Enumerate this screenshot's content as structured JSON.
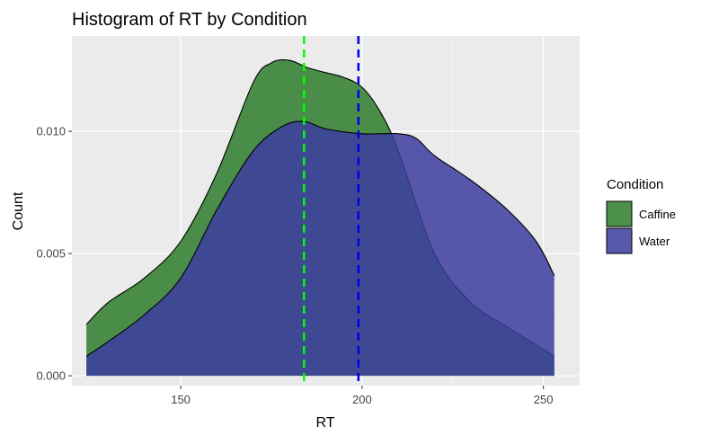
{
  "chart_data": {
    "type": "area",
    "title": "Histogram of RT by Condition",
    "xlabel": "RT",
    "ylabel": "Count",
    "xlim": [
      120,
      260
    ],
    "ylim": [
      -0.0004,
      0.0139
    ],
    "x_ticks": [
      150,
      200,
      250
    ],
    "y_ticks": [
      0.0,
      0.005,
      0.01
    ],
    "x_tick_labels": [
      "150",
      "200",
      "250"
    ],
    "y_tick_labels": [
      "0.000",
      "0.005",
      "0.010"
    ],
    "grid": true,
    "legend": {
      "title": "Condition",
      "position": "right"
    },
    "series": [
      {
        "name": "Caffine",
        "color": "#2d7d2d",
        "x": [
          124,
          130,
          140,
          150,
          160,
          170,
          175,
          180,
          185,
          190,
          195,
          200,
          205,
          210,
          220,
          230,
          240,
          253
        ],
        "y": [
          0.0021,
          0.003,
          0.004,
          0.0055,
          0.0083,
          0.012,
          0.0128,
          0.0129,
          0.0126,
          0.0124,
          0.0122,
          0.0118,
          0.0108,
          0.0092,
          0.005,
          0.003,
          0.002,
          0.0008
        ]
      },
      {
        "name": "Water",
        "color": "#3c3ca0",
        "x": [
          124,
          130,
          140,
          150,
          160,
          170,
          178,
          184,
          190,
          200,
          210,
          215,
          220,
          230,
          240,
          248,
          253
        ],
        "y": [
          0.0008,
          0.0014,
          0.0025,
          0.004,
          0.0068,
          0.0092,
          0.0102,
          0.0104,
          0.0101,
          0.0099,
          0.0099,
          0.0097,
          0.009,
          0.008,
          0.0068,
          0.0055,
          0.0041
        ]
      }
    ],
    "vlines": [
      {
        "x": 184,
        "color": "#00ff00",
        "style": "dashed"
      },
      {
        "x": 199,
        "color": "#0000ee",
        "style": "dashed"
      }
    ]
  }
}
